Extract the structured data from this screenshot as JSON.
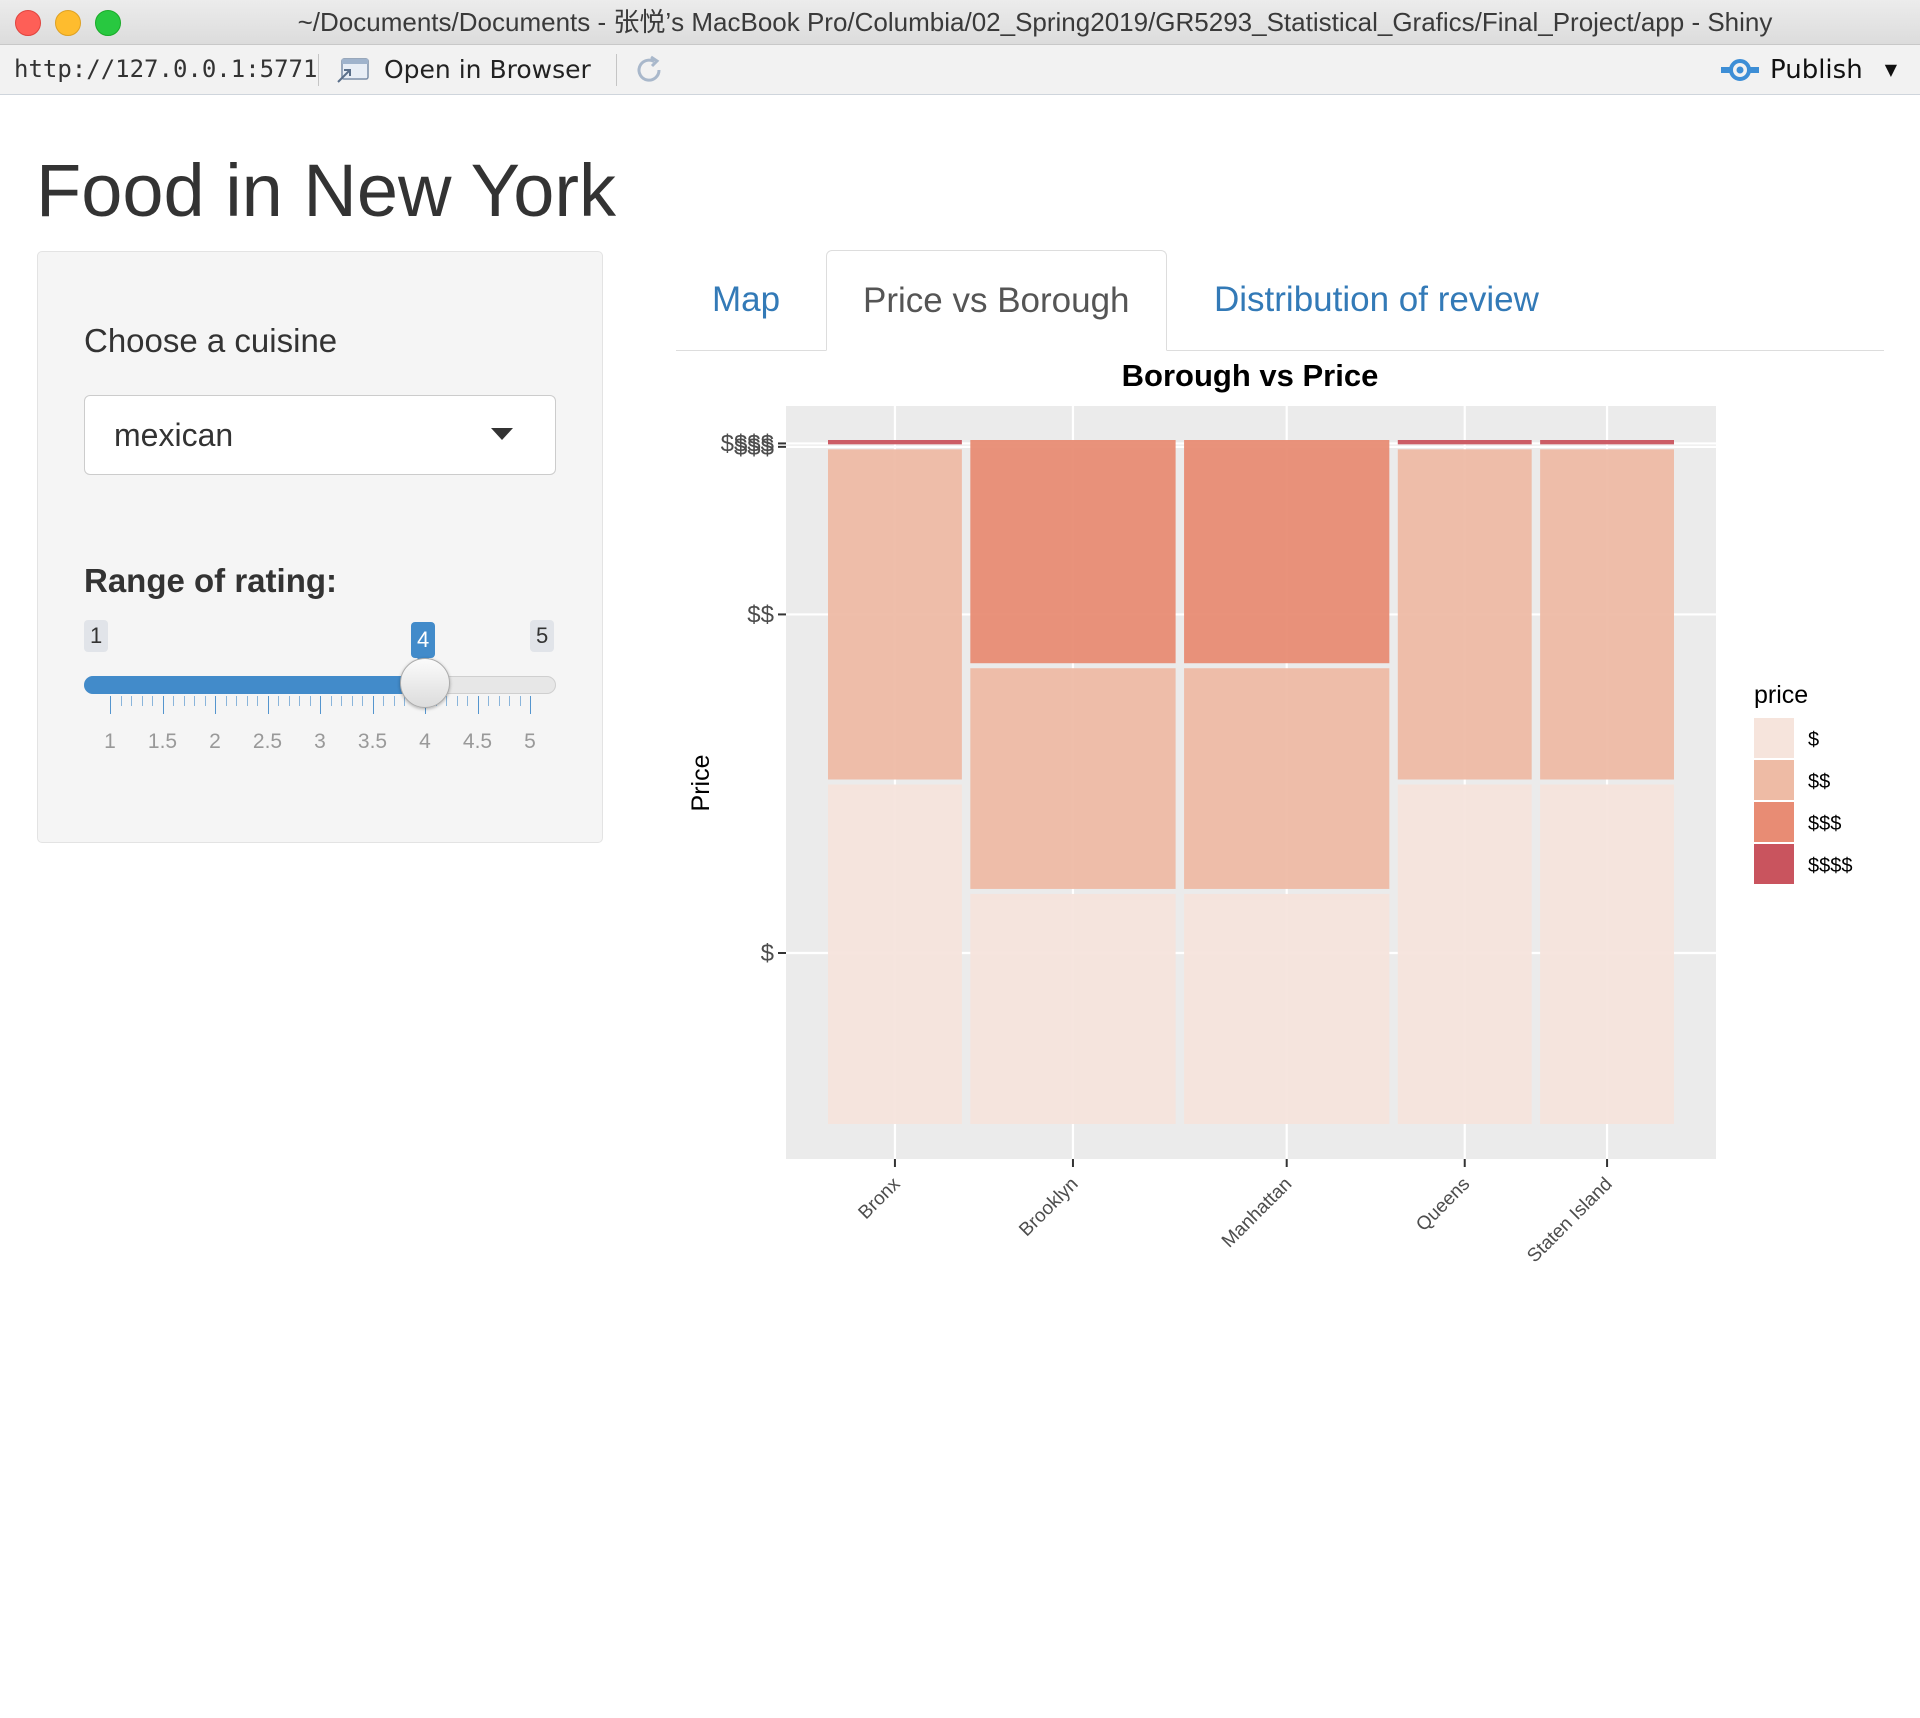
{
  "window": {
    "title": "~/Documents/Documents - 张悦’s MacBook Pro/Columbia/02_Spring2019/GR5293_Statistical_Grafics/Final_Project/app - Shiny"
  },
  "toolbar": {
    "url": "http://127.0.0.1:5771",
    "open_in_browser": "Open in Browser",
    "publish": "Publish"
  },
  "page": {
    "title": "Food in New York"
  },
  "sidebar": {
    "cuisine_label": "Choose a cuisine",
    "cuisine_value": "mexican",
    "rating_label": "Range of rating:",
    "slider": {
      "min": 1,
      "max": 5,
      "value": 4,
      "min_label": "1",
      "max_label": "5",
      "value_label": "4",
      "ticks": [
        "1",
        "1.5",
        "2",
        "2.5",
        "3",
        "3.5",
        "4",
        "4.5",
        "5"
      ]
    }
  },
  "tabs": [
    {
      "label": "Map",
      "active": false
    },
    {
      "label": "Price vs Borough",
      "active": true
    },
    {
      "label": "Distribution of review",
      "active": false
    }
  ],
  "chart_data": {
    "type": "bar",
    "subtype": "mosaic",
    "title": "Borough vs Price",
    "xlabel": "",
    "ylabel": "Price",
    "legend_title": "price",
    "legend_position": "right",
    "categories": [
      "Bronx",
      "Brooklyn",
      "Manhattan",
      "Queens",
      "Staten Island"
    ],
    "widths": [
      0.15,
      0.23,
      0.23,
      0.15,
      0.15
    ],
    "y_tick_labels": [
      "$",
      "$$",
      "$$$",
      "$$$$"
    ],
    "series": [
      {
        "name": "$",
        "color": "#f6e4dc",
        "values": [
          0.5,
          0.34,
          0.34,
          0.5,
          0.5
        ]
      },
      {
        "name": "$$",
        "color": "#eebba5",
        "values": [
          0.49,
          0.33,
          0.33,
          0.49,
          0.49
        ]
      },
      {
        "name": "$$$",
        "color": "#e88c74",
        "values": [
          0.0,
          0.33,
          0.33,
          0.0,
          0.0
        ]
      },
      {
        "name": "$$$$",
        "color": "#c9545e",
        "values": [
          0.01,
          0.0,
          0.0,
          0.01,
          0.01
        ]
      }
    ],
    "grid": true
  }
}
